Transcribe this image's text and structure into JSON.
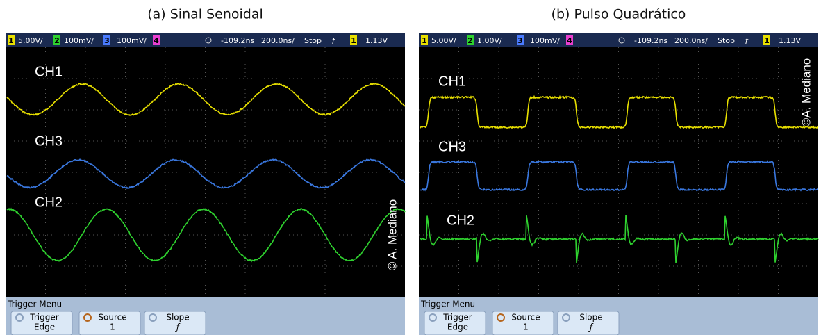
{
  "panels": [
    {
      "caption": "(a) Sinal Senoidal",
      "status": [
        "1",
        "5.00V/",
        "2",
        "100mV/",
        "3",
        "100mV/",
        "4",
        "-109.2ns",
        "200.0ns/",
        "Stop",
        "ƒ",
        "1",
        "1.13V"
      ],
      "channels": [
        "CH1",
        "CH3",
        "CH2"
      ],
      "watermark": "© A. Mediano",
      "menu_title": "Trigger Menu",
      "buttons": [
        [
          "Trigger",
          "Edge"
        ],
        [
          "Source",
          "1"
        ],
        [
          "Slope",
          "ƒ"
        ]
      ]
    },
    {
      "caption": "(b) Pulso Quadrático",
      "status": [
        "1",
        "5.00V/",
        "2",
        "1.00V/",
        "3",
        "100mV/",
        "4",
        "-109.2ns",
        "200.0ns/",
        "Stop",
        "ƒ",
        "1",
        "1.13V"
      ],
      "channels": [
        "CH1",
        "CH3",
        "CH2"
      ],
      "watermark": "©A. Mediano",
      "menu_title": "Trigger Menu",
      "buttons": [
        [
          "Trigger",
          "Edge"
        ],
        [
          "Source",
          "1"
        ],
        [
          "Slope",
          "ƒ"
        ]
      ]
    }
  ]
}
